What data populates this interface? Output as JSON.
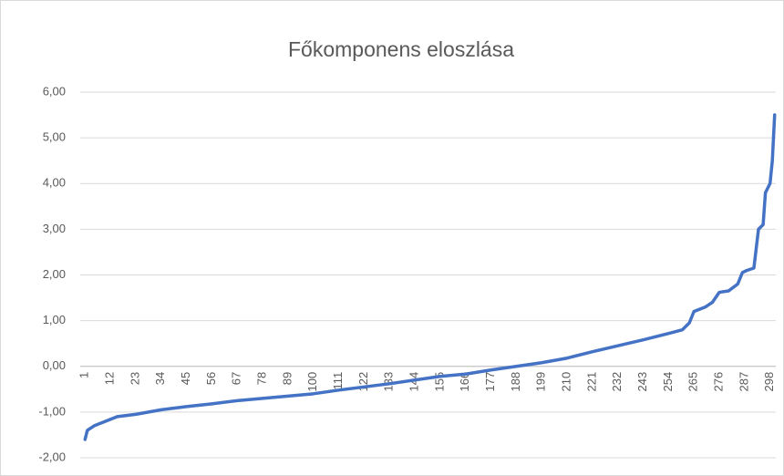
{
  "chart_data": {
    "type": "line",
    "title": "Főkomponens eloszlása",
    "x": [
      1,
      2,
      5,
      10,
      15,
      23,
      34,
      45,
      56,
      67,
      78,
      89,
      100,
      111,
      122,
      133,
      144,
      155,
      166,
      177,
      188,
      199,
      210,
      221,
      232,
      243,
      254,
      260,
      263,
      265,
      270,
      273,
      276,
      280,
      284,
      286,
      288,
      291,
      293,
      295,
      296,
      298,
      299,
      300
    ],
    "values": [
      -1.6,
      -1.4,
      -1.3,
      -1.2,
      -1.1,
      -1.05,
      -0.95,
      -0.88,
      -0.82,
      -0.75,
      -0.7,
      -0.65,
      -0.6,
      -0.52,
      -0.45,
      -0.38,
      -0.3,
      -0.22,
      -0.17,
      -0.08,
      0.0,
      0.08,
      0.18,
      0.32,
      0.45,
      0.58,
      0.72,
      0.8,
      0.95,
      1.2,
      1.3,
      1.4,
      1.62,
      1.65,
      1.8,
      2.05,
      2.1,
      2.15,
      3.0,
      3.1,
      3.8,
      4.0,
      4.5,
      5.5
    ],
    "color": "#4472c4",
    "xlim": [
      0.5,
      300.5
    ],
    "xticks": [
      1,
      12,
      23,
      34,
      45,
      56,
      67,
      78,
      89,
      100,
      111,
      122,
      133,
      144,
      155,
      166,
      177,
      188,
      199,
      210,
      221,
      232,
      243,
      254,
      265,
      276,
      287,
      298
    ],
    "ylim": [
      -2,
      6
    ],
    "yticks": [
      {
        "value": -2,
        "label": "-2,00"
      },
      {
        "value": -1,
        "label": "-1,00"
      },
      {
        "value": 0,
        "label": "0,00"
      },
      {
        "value": 1,
        "label": "1,00"
      },
      {
        "value": 2,
        "label": "2,00"
      },
      {
        "value": 3,
        "label": "3,00"
      },
      {
        "value": 4,
        "label": "4,00"
      },
      {
        "value": 5,
        "label": "5,00"
      },
      {
        "value": 6,
        "label": "6,00"
      }
    ],
    "grid": true
  }
}
